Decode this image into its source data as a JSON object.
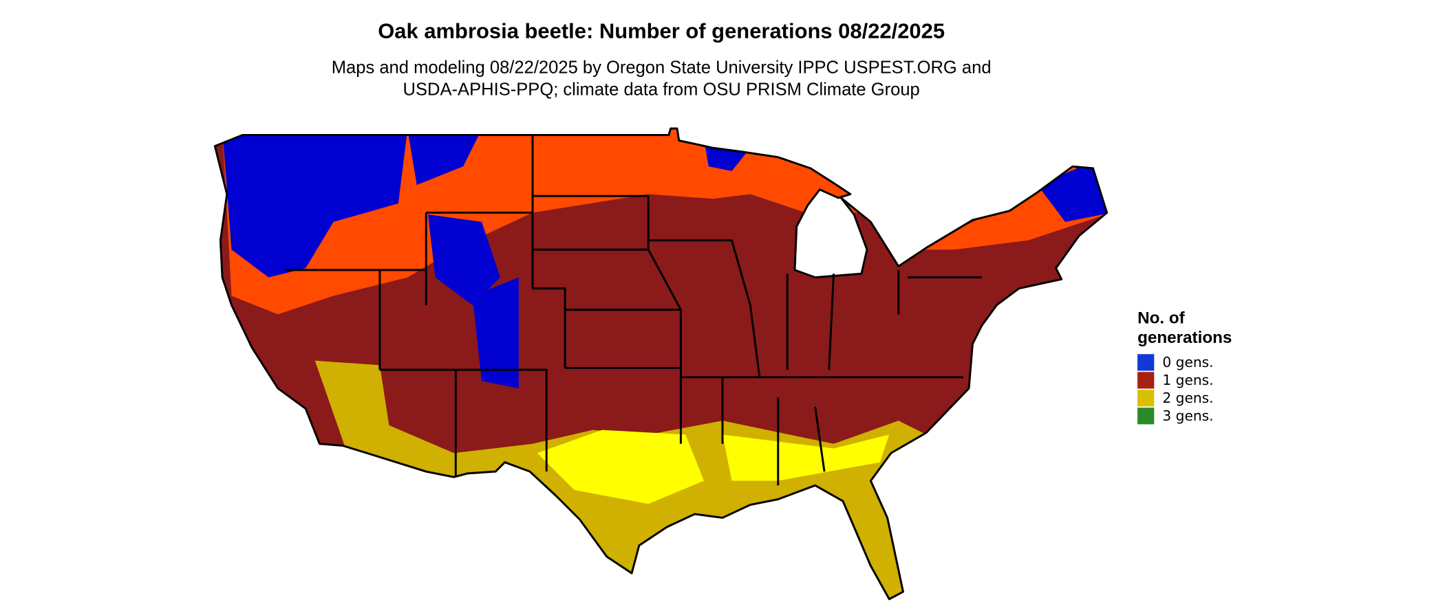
{
  "header": {
    "title": "Oak ambrosia beetle: Number of generations 08/22/2025",
    "subtitle_lines": [
      "Maps and modeling 08/22/2025 by Oregon State University IPPC USPEST.ORG and",
      "USDA-APHIS-PPQ; climate data from OSU PRISM Climate Group"
    ]
  },
  "legend": {
    "title_lines": [
      "No. of",
      "generations"
    ],
    "items": [
      {
        "label": "0 gens.",
        "color": "#1437d8"
      },
      {
        "label": "1 gens.",
        "color": "#a8210f"
      },
      {
        "label": "2 gens.",
        "color": "#d8c000"
      },
      {
        "label": "3 gens.",
        "color": "#2a8a2a"
      }
    ]
  }
}
